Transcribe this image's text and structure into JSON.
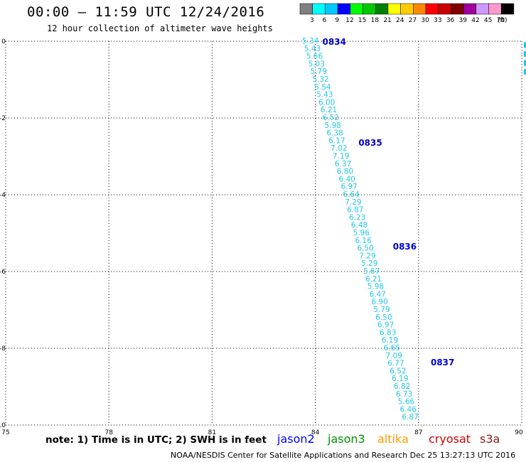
{
  "header": {
    "title": "00:00 – 11:59 UTC 12/24/2016",
    "subtitle": "12 hour collection of altimeter wave heights"
  },
  "legend": {
    "unit": "(ft)",
    "bins": [
      {
        "label": "3",
        "color": "#808080"
      },
      {
        "label": "6",
        "color": "#00ffff"
      },
      {
        "label": "9",
        "color": "#00c8ff"
      },
      {
        "label": "12",
        "color": "#0000ff"
      },
      {
        "label": "15",
        "color": "#00ff00"
      },
      {
        "label": "18",
        "color": "#00c800"
      },
      {
        "label": "21",
        "color": "#008000"
      },
      {
        "label": "24",
        "color": "#ffff00"
      },
      {
        "label": "27",
        "color": "#ffcc00"
      },
      {
        "label": "30",
        "color": "#ff8800"
      },
      {
        "label": "33",
        "color": "#ff0000"
      },
      {
        "label": "36",
        "color": "#c80000"
      },
      {
        "label": "39",
        "color": "#800000"
      },
      {
        "label": "42",
        "color": "#a000a0"
      },
      {
        "label": "45",
        "color": "#cc99ff"
      },
      {
        "label": "70",
        "color": "#ff99cc"
      },
      {
        "label": "",
        "color": "#000000"
      }
    ]
  },
  "map": {
    "lon_range": [
      75,
      90
    ],
    "lat_range": [
      -10,
      0
    ],
    "lon_ticks": [
      "75",
      "78",
      "81",
      "84",
      "87",
      "90"
    ],
    "lat_ticks": [
      "0",
      "-2",
      "-4",
      "-6",
      "-8",
      "-10"
    ],
    "track_color": "#22c8e6",
    "time_color": "#0000cc",
    "track_start": [
      84.1,
      0.0
    ],
    "track_end": [
      87.0,
      -9.8
    ],
    "wave_heights": [
      "5.34",
      "5.43",
      "5.66",
      "5.03",
      "5.79",
      "5.32",
      "5.54",
      "5.43",
      "6.00",
      "6.21",
      "6.52",
      "5.98",
      "6.38",
      "6.17",
      "7.02",
      "7.19",
      "6.37",
      "6.80",
      "6.40",
      "6.97",
      "6.64",
      "7.29",
      "6.87",
      "6.23",
      "6.48",
      "5.96",
      "6.16",
      "6.50",
      "7.29",
      "5.29",
      "5.67",
      "6.21",
      "5.98",
      "6.47",
      "6.90",
      "5.79",
      "6.50",
      "6.97",
      "6.83",
      "6.19",
      "6.65",
      "7.09",
      "6.77",
      "6.52",
      "6.19",
      "6.82",
      "6.73",
      "5.66",
      "6.46",
      "6.87"
    ],
    "time_labels": [
      {
        "text": "0834",
        "lon": 84.55,
        "lat": -0.02
      },
      {
        "text": "0835",
        "lon": 85.6,
        "lat": -2.65
      },
      {
        "text": "0836",
        "lon": 86.6,
        "lat": -5.35
      },
      {
        "text": "0837",
        "lon": 87.7,
        "lat": -8.37
      }
    ],
    "edge_track": {
      "lon": 90.1,
      "lat_start": -0.1,
      "lat_end": -0.8
    }
  },
  "footer": {
    "note": "note: 1) Time is in UTC; 2) SWH is in feet",
    "credit": "NOAA/NESDIS Center for Satellite Applications and Research    Dec 25 13:27:13 UTC 2016",
    "satellites": [
      {
        "name": "jason2",
        "color": "#0000ff"
      },
      {
        "name": "jason3",
        "color": "#009000"
      },
      {
        "name": "altika",
        "color": "#ff9900"
      },
      {
        "name": "cryosat",
        "color": "#cc0000"
      },
      {
        "name": "s3a",
        "color": "#8b1a1a"
      }
    ]
  }
}
